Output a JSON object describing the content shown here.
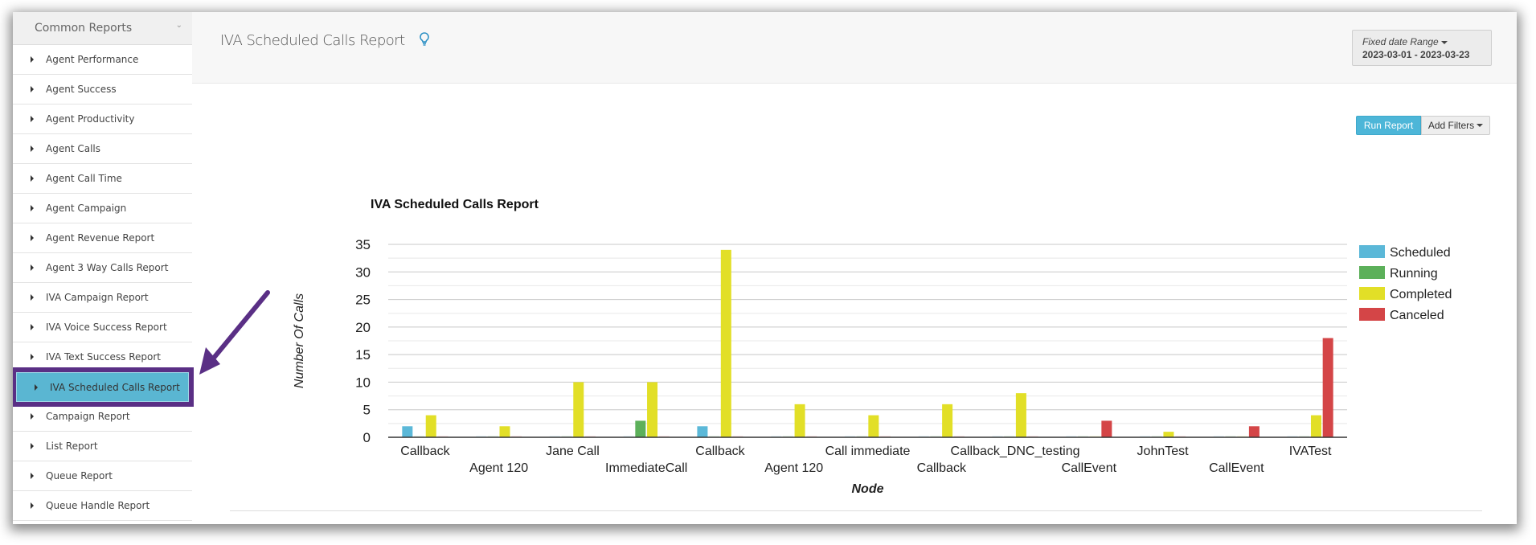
{
  "sidebar": {
    "header": "Common Reports",
    "items": [
      {
        "label": "Agent Performance"
      },
      {
        "label": "Agent Success"
      },
      {
        "label": "Agent Productivity"
      },
      {
        "label": "Agent Calls"
      },
      {
        "label": "Agent Call Time"
      },
      {
        "label": "Agent Campaign"
      },
      {
        "label": "Agent Revenue Report"
      },
      {
        "label": "Agent 3 Way Calls Report"
      },
      {
        "label": "IVA Campaign Report"
      },
      {
        "label": "IVA Voice Success Report"
      },
      {
        "label": "IVA Text Success Report"
      },
      {
        "label": "IVA Scheduled Calls Report",
        "active": true
      },
      {
        "label": "Campaign Report"
      },
      {
        "label": "List Report"
      },
      {
        "label": "Queue Report"
      },
      {
        "label": "Queue Handle Report"
      }
    ]
  },
  "header": {
    "title": "IVA Scheduled Calls Report",
    "help_icon": "lightbulb-icon",
    "date_range_label": "Fixed date Range",
    "date_range_value": "2023-03-01 - 2023-03-23"
  },
  "toolbar": {
    "run_report": "Run Report",
    "add_filters": "Add Filters"
  },
  "annotation": {
    "arrow_color": "#5a2f85"
  },
  "chart_data": {
    "type": "bar",
    "title": "IVA Scheduled Calls Report",
    "xlabel": "Node",
    "ylabel": "Number Of Calls",
    "ylim": [
      0,
      35
    ],
    "yticks": [
      0,
      5,
      10,
      15,
      20,
      25,
      30,
      35
    ],
    "grid": true,
    "legend": "right",
    "categories": [
      "Callback",
      "Agent 120",
      "Jane Call",
      "ImmediateCall",
      "Callback",
      "Agent 120",
      "Call immediate",
      "Callback",
      "Callback_DNC_testing",
      "CallEvent",
      "JohnTest",
      "CallEvent",
      "IVATest"
    ],
    "series": [
      {
        "name": "Scheduled",
        "color": "#5bb8d8",
        "values": [
          2,
          0,
          0,
          0,
          2,
          0,
          0,
          0,
          0,
          0,
          0,
          0,
          0
        ]
      },
      {
        "name": "Running",
        "color": "#5cb05a",
        "values": [
          0,
          0,
          0,
          3,
          0,
          0,
          0,
          0,
          0,
          0,
          0,
          0,
          0
        ]
      },
      {
        "name": "Completed",
        "color": "#e2df27",
        "values": [
          4,
          2,
          10,
          10,
          34,
          6,
          4,
          6,
          8,
          0,
          1,
          0,
          4
        ]
      },
      {
        "name": "Canceled",
        "color": "#d44547",
        "values": [
          0,
          0,
          0,
          0,
          0,
          0,
          0,
          0,
          0,
          3,
          0,
          2,
          18
        ]
      }
    ]
  }
}
